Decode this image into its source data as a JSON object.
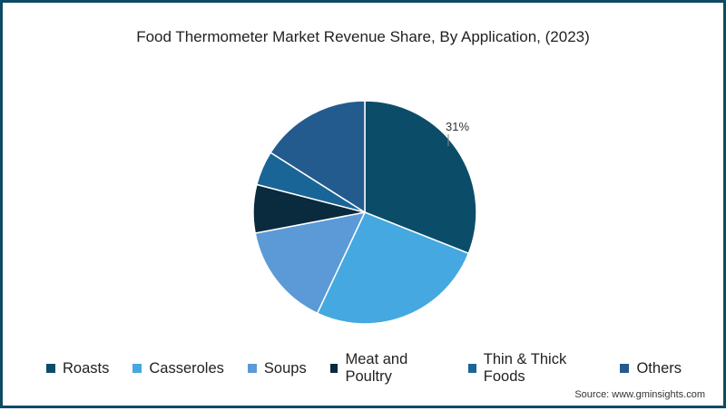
{
  "chart_data": {
    "type": "pie",
    "title": "Food Thermometer Market Revenue Share, By Application, (2023)",
    "categories": [
      "Roasts",
      "Casseroles",
      "Soups",
      "Meat and Poultry",
      "Thin & Thick Foods",
      "Others"
    ],
    "values": [
      31,
      26,
      15,
      7,
      5,
      16
    ],
    "unit": "%",
    "colors": [
      "#0b4d68",
      "#45a8e0",
      "#5b9ad6",
      "#0a2a3d",
      "#1a6597",
      "#235b8f"
    ],
    "annotations": [
      {
        "category": "Roasts",
        "text": "31%"
      }
    ],
    "legend_position": "bottom",
    "start_angle": "12 o'clock, clockwise"
  },
  "title": "Food Thermometer Market Revenue Share, By Application, (2023)",
  "label_roasts": "31%",
  "legend": [
    {
      "label": "Roasts",
      "color": "#0b4d68"
    },
    {
      "label": "Casseroles",
      "color": "#45a8e0"
    },
    {
      "label": "Soups",
      "color": "#5b9ad6"
    },
    {
      "label": "Meat and Poultry",
      "color": "#0a2a3d"
    },
    {
      "label": "Thin & Thick Foods",
      "color": "#1a6597"
    },
    {
      "label": "Others",
      "color": "#235b8f"
    }
  ],
  "source": "Source: www.gminsights.com",
  "frame_color": "#0d4a63"
}
